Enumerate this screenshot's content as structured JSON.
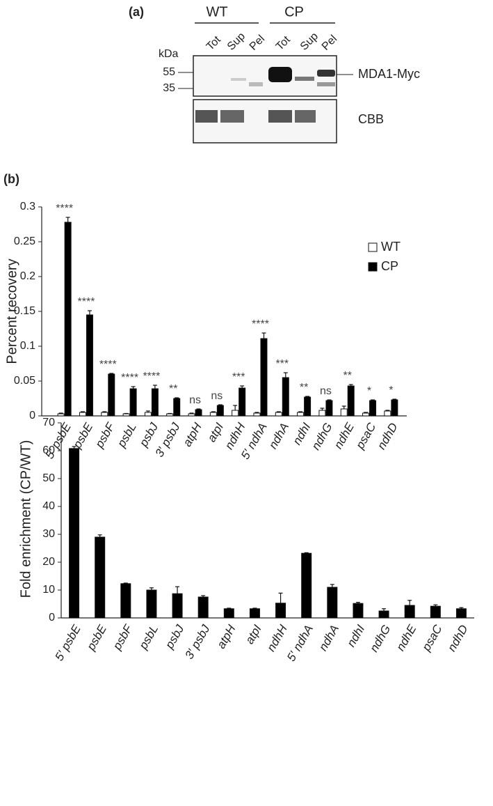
{
  "panel_a": {
    "label": "(a)",
    "groups": [
      "WT",
      "CP"
    ],
    "lanes": [
      "Tot",
      "Sup",
      "Pel",
      "Tot",
      "Sup",
      "Pel"
    ],
    "unit": "kDa",
    "markers": [
      "55",
      "35"
    ],
    "blot_label": "MDA1-Myc",
    "stain_label": "CBB"
  },
  "panel_b_label": "(b)",
  "chart_data": [
    {
      "type": "bar",
      "y_label": "Percent recovery",
      "categories": [
        "5′ psbE",
        "psbE",
        "psbF",
        "psbL",
        "psbJ",
        "3′ psbJ",
        "atpH",
        "atpI",
        "ndhH",
        "5′ ndhA",
        "ndhA",
        "ndhI",
        "ndhG",
        "ndhE",
        "psaC",
        "ndhD"
      ],
      "series": [
        {
          "name": "WT",
          "color": "#ffffff",
          "values": [
            0.003,
            0.005,
            0.005,
            0.003,
            0.005,
            0.003,
            0.003,
            0.005,
            0.008,
            0.004,
            0.005,
            0.005,
            0.008,
            0.01,
            0.004,
            0.007
          ],
          "errors": [
            0.001,
            0.001,
            0.001,
            0.0005,
            0.002,
            0.0005,
            0.001,
            0.001,
            0.007,
            0.001,
            0.001,
            0.001,
            0.003,
            0.004,
            0.001,
            0.001
          ]
        },
        {
          "name": "CP",
          "color": "#000000",
          "values": [
            0.278,
            0.145,
            0.06,
            0.039,
            0.039,
            0.025,
            0.009,
            0.015,
            0.04,
            0.111,
            0.055,
            0.027,
            0.022,
            0.043,
            0.022,
            0.023
          ],
          "errors": [
            0.007,
            0.006,
            0.001,
            0.003,
            0.005,
            0.001,
            0.001,
            0.001,
            0.003,
            0.008,
            0.007,
            0.001,
            0.001,
            0.002,
            0.001,
            0.001
          ]
        }
      ],
      "annotations": [
        "****",
        "****",
        "****",
        "****",
        "****",
        "**",
        "ns",
        "ns",
        "***",
        "****",
        "***",
        "**",
        "ns",
        "**",
        "*",
        "*"
      ],
      "ylim": [
        0,
        0.3
      ],
      "yticks": [
        0,
        0.05,
        0.1,
        0.15,
        0.2,
        0.25,
        0.3
      ],
      "grid": false,
      "legend": "upper right"
    },
    {
      "type": "bar",
      "y_label": "Fold enrichment (CP/WT)",
      "categories": [
        "5′ psbE",
        "psbE",
        "psbF",
        "psbL",
        "psbJ",
        "3′ psbJ",
        "atpH",
        "atpI",
        "ndhH",
        "5′ ndhA",
        "ndhA",
        "ndhI",
        "ndhG",
        "ndhE",
        "psaC",
        "ndhD"
      ],
      "values": [
        60.8,
        29,
        12.3,
        10,
        8.7,
        7.5,
        3.3,
        3.3,
        5.3,
        23.2,
        11,
        5.2,
        2.5,
        4.5,
        4.2,
        3.3
      ],
      "errors": [
        0.7,
        0.8,
        0.2,
        0.8,
        2.5,
        0.5,
        0.2,
        0.2,
        3.6,
        0.2,
        1,
        0.4,
        0.8,
        1.8,
        0.5,
        0.4
      ],
      "color": "#000000",
      "ylim": [
        0,
        70
      ],
      "yticks": [
        0,
        10,
        20,
        30,
        40,
        50,
        60,
        70
      ],
      "grid": false
    }
  ]
}
